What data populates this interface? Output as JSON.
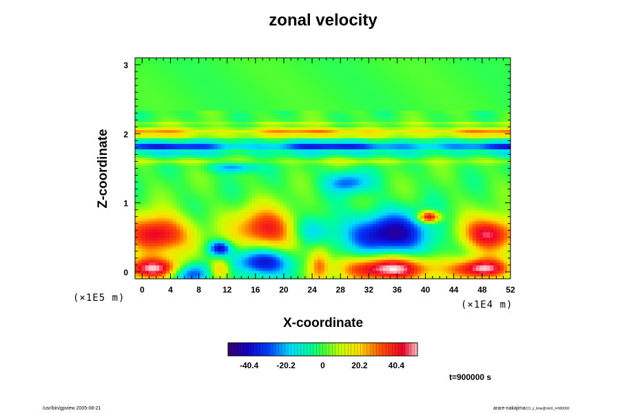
{
  "title": "zonal velocity",
  "xlabel": "X-coordinate",
  "ylabel": "Z-coordinate",
  "x_unit": "(×1E4 m)",
  "z_unit": "(×1E5 m)",
  "time_label": "t=900000 s",
  "footer_left": "/usr/bin/gpview 2005-08-21",
  "footer_right": "arare-nakajima",
  "footer_right_small": "CO_z_lime@VelX_t=900000",
  "chart_data": {
    "type": "heatmap",
    "title": "zonal velocity",
    "xlabel": "X-coordinate",
    "ylabel": "Z-coordinate",
    "xlim": [
      -1,
      52
    ],
    "ylim": [
      -0.1,
      3.1
    ],
    "x_ticks": [
      0,
      4,
      8,
      12,
      16,
      20,
      24,
      28,
      32,
      36,
      40,
      44,
      48,
      52
    ],
    "y_ticks": [
      0,
      1,
      2,
      3
    ],
    "colorbar": {
      "ticks": [
        -40.4,
        -20.2,
        0,
        20.2,
        40.4
      ],
      "range": [
        -52,
        52
      ]
    },
    "features": [
      {
        "x": 2,
        "z": 0.55,
        "v": 48,
        "rx": 4.5,
        "rz": 0.28
      },
      {
        "x": 17.5,
        "z": 0.62,
        "v": 42,
        "rx": 4.5,
        "rz": 0.3
      },
      {
        "x": 35,
        "z": 0.55,
        "v": -45,
        "rx": 6,
        "rz": 0.3
      },
      {
        "x": 49,
        "z": 0.55,
        "v": 48,
        "rx": 4,
        "rz": 0.25
      },
      {
        "x": 2,
        "z": 0.05,
        "v": 48,
        "rx": 5,
        "rz": 0.15
      },
      {
        "x": 7,
        "z": 0.0,
        "v": -40,
        "rx": 3,
        "rz": 0.15
      },
      {
        "x": 11,
        "z": 0.05,
        "v": 30,
        "rx": 1.5,
        "rz": 0.15
      },
      {
        "x": 17,
        "z": 0.15,
        "v": -42,
        "rx": 4,
        "rz": 0.2
      },
      {
        "x": 25,
        "z": 0.1,
        "v": 30,
        "rx": 1.5,
        "rz": 0.25
      },
      {
        "x": 35,
        "z": 0.05,
        "v": 55,
        "rx": 6.5,
        "rz": 0.18
      },
      {
        "x": 48,
        "z": 0.05,
        "v": 50,
        "rx": 4,
        "rz": 0.15
      },
      {
        "x": 11,
        "z": 0.35,
        "v": -40,
        "rx": 1.5,
        "rz": 0.1
      },
      {
        "x": 40.5,
        "z": 0.8,
        "v": 52,
        "rx": 1.5,
        "rz": 0.08
      },
      {
        "x": 24,
        "z": 0.6,
        "v": -20,
        "rx": 3,
        "rz": 0.2
      },
      {
        "x": 29,
        "z": 1.3,
        "v": -28,
        "rx": 3,
        "rz": 0.15
      },
      {
        "x": 13,
        "z": 1.52,
        "v": -25,
        "rx": 3,
        "rz": 0.08
      }
    ],
    "bands": [
      {
        "z": 2.15,
        "v": 10,
        "w": 0.03
      },
      {
        "z": 2.05,
        "v": 30,
        "w": 0.035
      },
      {
        "z": 1.98,
        "v": 22,
        "w": 0.03
      },
      {
        "z": 1.9,
        "v": -12,
        "w": 0.03
      },
      {
        "z": 1.82,
        "v": -42,
        "w": 0.045
      },
      {
        "z": 1.72,
        "v": -15,
        "w": 0.04
      },
      {
        "z": 1.6,
        "v": 10,
        "w": 0.04
      }
    ]
  }
}
